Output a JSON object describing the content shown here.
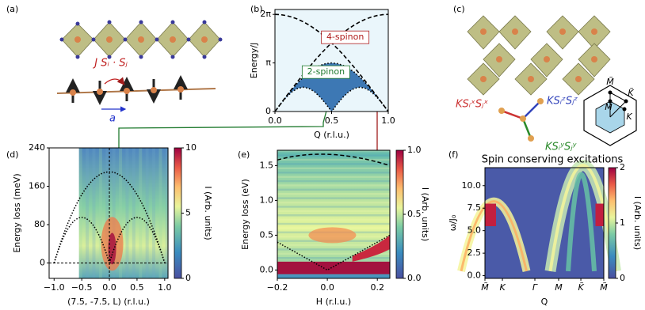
{
  "panel_labels": [
    "(a)",
    "(b)",
    "(c)",
    "(d)",
    "(e)",
    "(f)"
  ],
  "diagram_a": {
    "coupling": "J Sᵢ · Sⱼ",
    "spacing": "a"
  },
  "diagram_c": {
    "bonds": [
      "KSᵢˣSⱼˣ",
      "KSᵢᶻSⱼᶻ",
      "KSᵢʸSⱼʸ"
    ],
    "points": [
      "M̃",
      "K̃",
      "M",
      "K"
    ]
  },
  "chart_data": [
    {
      "type": "line",
      "panel": "(b)",
      "xlabel": "Q (r.l.u.)",
      "ylabel": "Energy/J",
      "x": [
        0,
        0.05,
        0.1,
        0.15,
        0.2,
        0.25,
        0.3,
        0.35,
        0.4,
        0.45,
        0.5,
        0.55,
        0.6,
        0.65,
        0.7,
        0.75,
        0.8,
        0.85,
        0.9,
        0.95,
        1
      ],
      "xlim": [
        0,
        1
      ],
      "xticks": [
        {
          "value": 0,
          "label": "0.0"
        },
        {
          "value": 0.5,
          "label": "0.5"
        },
        {
          "value": 1,
          "label": "1.0"
        }
      ],
      "ylim": [
        0,
        6.6
      ],
      "yticks": [
        0,
        {
          "value": 3.1416,
          "label": "π"
        },
        {
          "value": 6.2832,
          "label": "2π"
        }
      ],
      "background": "#eaf6fb",
      "fill_between": [
        2,
        3
      ],
      "fill_color": "#3d78b4",
      "series": [
        {
          "style": "dashed",
          "color": "#000000",
          "values": [
            0,
            0.493,
            0.983,
            1.467,
            1.942,
            2.404,
            2.852,
            3.283,
            3.693,
            4.08,
            4.443,
            4.778,
            5.083,
            5.357,
            5.598,
            5.805,
            5.976,
            6.11,
            6.206,
            6.264,
            6.283
          ]
        },
        {
          "style": "dashed",
          "color": "#000000",
          "values": [
            6.283,
            6.264,
            6.206,
            6.11,
            5.976,
            5.805,
            5.598,
            5.357,
            5.083,
            4.778,
            4.443,
            4.08,
            3.693,
            3.283,
            2.852,
            2.404,
            1.942,
            1.467,
            0.983,
            0.493,
            0
          ]
        },
        {
          "style": "dotted",
          "color": "#000000",
          "values": [
            0,
            0.491,
            0.971,
            1.426,
            1.847,
            2.221,
            2.542,
            2.799,
            2.988,
            3.103,
            3.142,
            3.103,
            2.988,
            2.799,
            2.542,
            2.221,
            1.847,
            1.426,
            0.971,
            0.491,
            0
          ]
        },
        {
          "style": "dotted",
          "color": "#000000",
          "values": [
            0,
            0.485,
            0.923,
            1.271,
            1.494,
            1.571,
            1.494,
            1.271,
            0.923,
            0.485,
            0,
            0.485,
            0.923,
            1.271,
            1.494,
            1.571,
            1.494,
            1.271,
            0.923,
            0.485,
            0
          ]
        }
      ],
      "annotations": [
        {
          "text": "4-spinon",
          "color": "#b01c1c"
        },
        {
          "text": "2-spinon",
          "color": "#1f7a2e"
        }
      ]
    },
    {
      "type": "heatmap",
      "panel": "(d)",
      "xlabel": "(7.5, -7.5, L) (r.l.u.)",
      "ylabel": "Energy loss (meV)",
      "xlim": [
        -1.09,
        1.06
      ],
      "xticks": [
        {
          "value": -1,
          "label": "−1.0"
        },
        {
          "value": -0.5,
          "label": "−0.5"
        },
        {
          "value": 0,
          "label": "0.0"
        },
        {
          "value": 0.5,
          "label": "0.5"
        },
        {
          "value": 1,
          "label": "1.0"
        }
      ],
      "ylim": [
        -32,
        240
      ],
      "yticks": [
        0,
        80,
        160,
        240
      ],
      "colorbar": {
        "label": "I (Arb. units)",
        "lim": [
          0,
          10
        ],
        "ticks": [
          0,
          5,
          10
        ]
      }
    },
    {
      "type": "heatmap",
      "panel": "(e)",
      "xlabel": "H (r.l.u.)",
      "ylabel": "Energy loss (eV)",
      "xlim": [
        -0.2,
        0.25
      ],
      "xticks": [
        {
          "value": -0.2,
          "label": "−0.2"
        },
        {
          "value": 0,
          "label": "0.0"
        },
        {
          "value": 0.2,
          "label": "0.2"
        }
      ],
      "ylim": [
        -0.12,
        1.72
      ],
      "yticks": [
        {
          "value": 0,
          "label": "0.0"
        },
        {
          "value": 0.5,
          "label": "0.5"
        },
        {
          "value": 1,
          "label": "1.0"
        },
        {
          "value": 1.5,
          "label": "1.5"
        }
      ],
      "colorbar": {
        "label": "I (Arb. units)",
        "lim": [
          0,
          1
        ],
        "ticks": [
          {
            "value": 0,
            "label": "0.0"
          },
          {
            "value": 0.5,
            "label": "0.5"
          },
          {
            "value": 1,
            "label": "1.0"
          }
        ]
      }
    },
    {
      "type": "heatmap",
      "panel": "(f)",
      "title": "Spin conserving excitations",
      "xlabel": "Q",
      "ylabel": "ω/J₀",
      "categories": [
        "M̃",
        "K",
        "Γ",
        "M",
        "K̃",
        "M̃"
      ],
      "ylim": [
        -0.3,
        12
      ],
      "yticks": [
        {
          "value": 0,
          "label": "0.0"
        },
        {
          "value": 2.5,
          "label": "2.5"
        },
        {
          "value": 5,
          "label": "5.0"
        },
        {
          "value": 7.5,
          "label": "7.5"
        },
        {
          "value": 10,
          "label": "10.0"
        }
      ],
      "colorbar": {
        "label": "I (Arb. units)",
        "lim": [
          0,
          2
        ],
        "ticks": [
          0,
          1,
          2
        ]
      }
    }
  ]
}
